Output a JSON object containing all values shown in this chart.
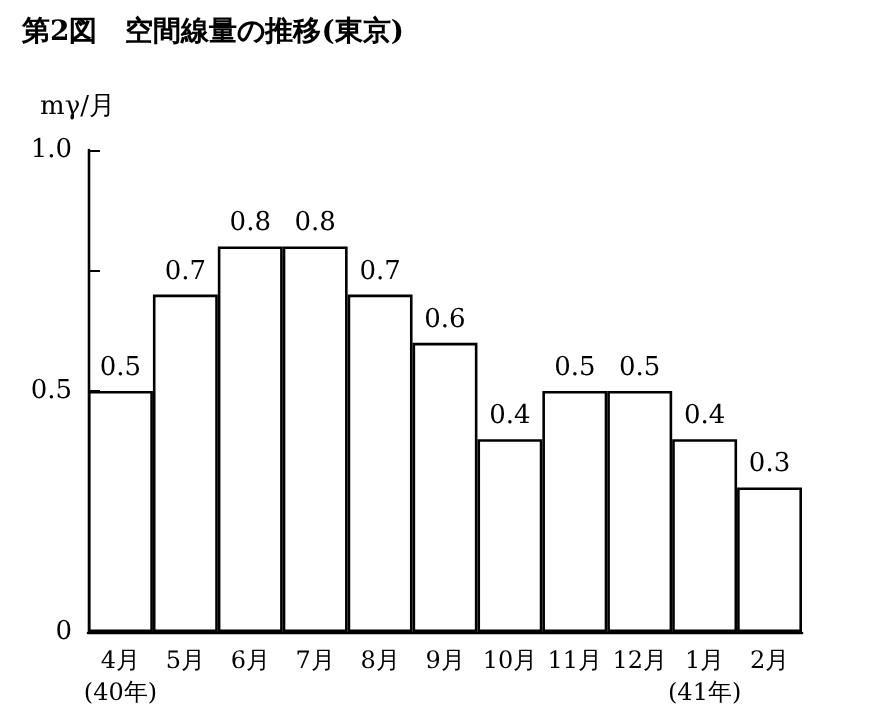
{
  "chart_data": {
    "type": "bar",
    "title": "第2図　空間線量の推移(東京)",
    "ylabel": "mγ/月",
    "categories": [
      "4月\n(40年)",
      "5月",
      "6月",
      "7月",
      "8月",
      "9月",
      "10月",
      "11月",
      "12月",
      "1月\n(41年)",
      "2月"
    ],
    "values": [
      0.5,
      0.7,
      0.8,
      0.8,
      0.7,
      0.6,
      0.4,
      0.5,
      0.5,
      0.4,
      0.3
    ],
    "color": "#ffffff",
    "ylim": [
      0,
      1.0
    ],
    "yticks": [
      0,
      {
        "value": 0.25,
        "label": null
      },
      0.5,
      {
        "value": 0.75,
        "label": null
      },
      {
        "value": 1.0,
        "label": "1.0"
      }
    ],
    "data_labels": true,
    "grid": false
  }
}
